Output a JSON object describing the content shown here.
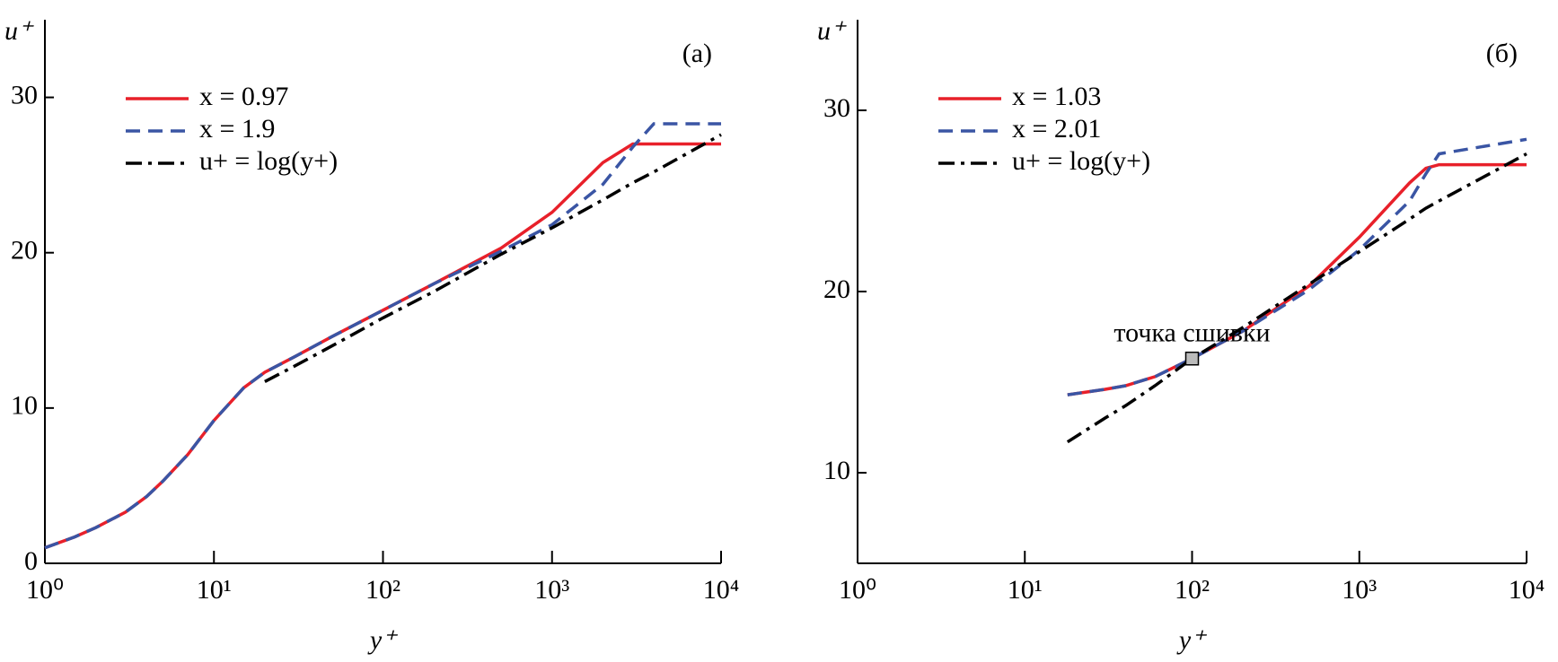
{
  "chart_data": [
    {
      "type": "line",
      "panel_label": "(а)",
      "xlabel": "y⁺",
      "ylabel": "u⁺",
      "xscale": "log",
      "legend": "upper left",
      "xlim": [
        1,
        10000
      ],
      "ylim": [
        0,
        35
      ],
      "xticks": [
        {
          "value": 1,
          "label": "10⁰"
        },
        {
          "value": 10,
          "label": "10¹"
        },
        {
          "value": 100,
          "label": "10²"
        },
        {
          "value": 1000,
          "label": "10³"
        },
        {
          "value": 10000,
          "label": "10⁴"
        }
      ],
      "yticks": [
        0,
        10,
        20,
        30
      ],
      "x": [
        1,
        1.5,
        2,
        3,
        4,
        5,
        7,
        10,
        15,
        20,
        30,
        50,
        100,
        200,
        500,
        1000,
        2000,
        3000,
        4000,
        10000
      ],
      "series": [
        {
          "name": "x = 0.97",
          "color": "#e8202a",
          "style": "solid",
          "values": [
            1.0,
            1.7,
            2.3,
            3.3,
            4.3,
            5.3,
            7.0,
            9.2,
            11.3,
            12.3,
            13.3,
            14.6,
            16.3,
            18.0,
            20.3,
            22.6,
            25.8,
            27.0,
            27.0,
            27.0
          ]
        },
        {
          "name": "x = 1.9",
          "color": "#3a55a4",
          "style": "dashed",
          "values": [
            1.0,
            1.7,
            2.3,
            3.3,
            4.3,
            5.3,
            7.0,
            9.2,
            11.3,
            12.3,
            13.3,
            14.6,
            16.3,
            18.0,
            20.1,
            21.8,
            24.4,
            26.8,
            28.3,
            28.3
          ]
        },
        {
          "name": "u+ = log(y+)",
          "color": "#000000",
          "style": "dashdot",
          "values": [
            null,
            null,
            null,
            null,
            null,
            null,
            null,
            null,
            null,
            11.7,
            12.7,
            14.0,
            15.8,
            17.5,
            19.9,
            21.6,
            23.4,
            24.5,
            25.2,
            27.6
          ]
        }
      ]
    },
    {
      "type": "line",
      "panel_label": "(б)",
      "xlabel": "y⁺",
      "ylabel": "u⁺",
      "xscale": "log",
      "legend": "upper left",
      "xlim": [
        1,
        10000
      ],
      "ylim": [
        5,
        35
      ],
      "xticks": [
        {
          "value": 1,
          "label": "10⁰"
        },
        {
          "value": 10,
          "label": "10¹"
        },
        {
          "value": 100,
          "label": "10²"
        },
        {
          "value": 1000,
          "label": "10³"
        },
        {
          "value": 10000,
          "label": "10⁴"
        }
      ],
      "yticks": [
        10,
        20,
        30
      ],
      "x": [
        18,
        30,
        40,
        60,
        100,
        200,
        500,
        1000,
        2000,
        2500,
        3000,
        10000
      ],
      "series": [
        {
          "name": "x = 1.03",
          "color": "#e8202a",
          "style": "solid",
          "values": [
            14.3,
            14.6,
            14.8,
            15.3,
            16.3,
            17.8,
            20.3,
            23.0,
            26.0,
            26.8,
            27.0,
            27.0
          ]
        },
        {
          "name": "x = 2.01",
          "color": "#3a55a4",
          "style": "dashed",
          "values": [
            14.3,
            14.6,
            14.8,
            15.3,
            16.3,
            17.8,
            20.1,
            22.3,
            25.0,
            26.5,
            27.6,
            28.4
          ]
        },
        {
          "name": "u+ = log(y+)",
          "color": "#000000",
          "style": "dashdot",
          "values": [
            11.7,
            13.0,
            13.7,
            14.8,
            16.3,
            18.0,
            20.4,
            22.2,
            24.0,
            24.6,
            25.0,
            27.6
          ]
        }
      ],
      "annotation": {
        "text": "точка сшивки",
        "x": 100,
        "y": 16.3
      }
    }
  ]
}
